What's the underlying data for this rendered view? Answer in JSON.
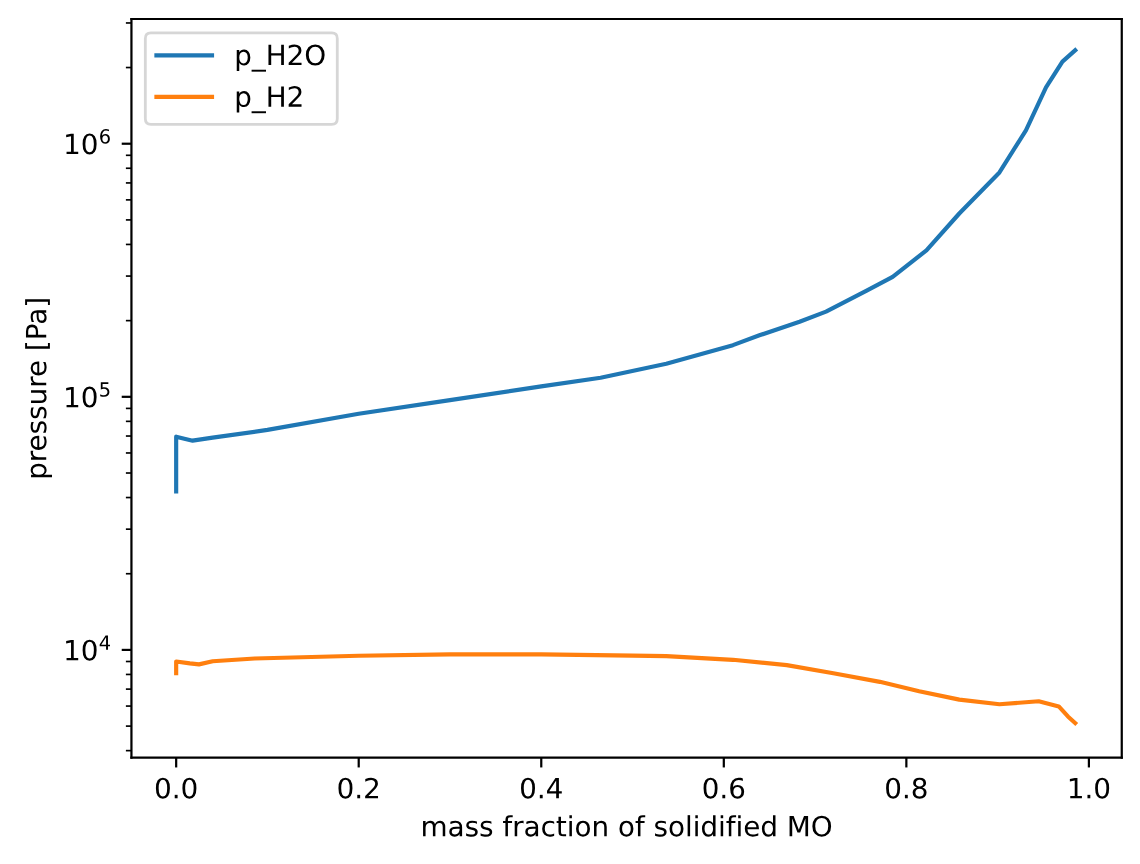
{
  "chart_data": {
    "type": "line",
    "xlabel": "mass fraction of solidified MO",
    "ylabel": "pressure [Pa]",
    "log": "y",
    "legend": "top left",
    "xlim": [
      -0.049,
      1.036
    ],
    "ylim": [
      3750,
      3110000
    ],
    "xticks": [
      {
        "value": 0,
        "label": "0.0"
      },
      {
        "value": 0.2,
        "label": "0.2"
      },
      {
        "value": 0.4,
        "label": "0.4"
      },
      {
        "value": 0.6,
        "label": "0.6"
      },
      {
        "value": 0.8,
        "label": "0.8"
      },
      {
        "value": 1,
        "label": "1.0"
      }
    ],
    "yticks": [
      {
        "value": 4000,
        "label": null
      },
      {
        "value": 5000,
        "label": null
      },
      {
        "value": 6000,
        "label": null
      },
      {
        "value": 7000,
        "label": null
      },
      {
        "value": 8000,
        "label": null
      },
      {
        "value": 9000,
        "label": null
      },
      {
        "value": 10000,
        "label": "10$^{4}$"
      },
      {
        "value": 20000,
        "label": null
      },
      {
        "value": 30000,
        "label": null
      },
      {
        "value": 40000,
        "label": null
      },
      {
        "value": 50000,
        "label": null
      },
      {
        "value": 60000,
        "label": null
      },
      {
        "value": 70000,
        "label": null
      },
      {
        "value": 80000,
        "label": null
      },
      {
        "value": 90000,
        "label": null
      },
      {
        "value": 100000,
        "label": "10$^{5}$"
      },
      {
        "value": 200000,
        "label": null
      },
      {
        "value": 300000,
        "label": null
      },
      {
        "value": 400000,
        "label": null
      },
      {
        "value": 500000,
        "label": null
      },
      {
        "value": 600000,
        "label": null
      },
      {
        "value": 700000,
        "label": null
      },
      {
        "value": 800000,
        "label": null
      },
      {
        "value": 900000,
        "label": null
      },
      {
        "value": 1000000,
        "label": "10$^{6}$"
      },
      {
        "value": 2000000,
        "label": null
      },
      {
        "value": 3000000,
        "label": null
      }
    ],
    "series": [
      {
        "name": "p_H2O",
        "color": "#1f77b4",
        "x": [
          0,
          0,
          0.018,
          0.04,
          0.1,
          0.2,
          0.3,
          0.4,
          0.465,
          0.537,
          0.61,
          0.639,
          0.683,
          0.712,
          0.756,
          0.785,
          0.822,
          0.858,
          0.902,
          0.931,
          0.953,
          0.971,
          0.985
        ],
        "values": [
          42300,
          69600,
          67100,
          69000,
          74000,
          85700,
          97000,
          110000,
          119000,
          135000,
          160000,
          175000,
          198000,
          217000,
          262000,
          298000,
          379000,
          530000,
          770000,
          1130000,
          1670000,
          2110000,
          2340000
        ]
      },
      {
        "name": "p_H2",
        "color": "#ff7f0e",
        "x": [
          0,
          0,
          0.015,
          0.025,
          0.04,
          0.086,
          0.2,
          0.3,
          0.4,
          0.5,
          0.537,
          0.61,
          0.669,
          0.72,
          0.771,
          0.814,
          0.858,
          0.902,
          0.945,
          0.967,
          0.977,
          0.985
        ],
        "values": [
          8100,
          9000,
          8850,
          8770,
          9020,
          9250,
          9480,
          9600,
          9600,
          9500,
          9450,
          9140,
          8710,
          8090,
          7480,
          6870,
          6360,
          6100,
          6270,
          5980,
          5460,
          5140
        ]
      }
    ]
  }
}
